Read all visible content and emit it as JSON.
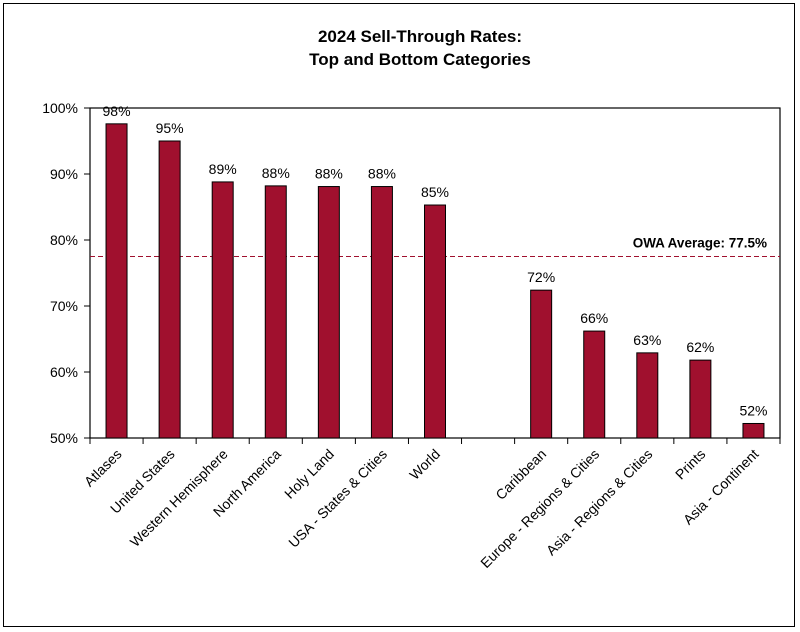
{
  "chart_data": {
    "type": "bar",
    "title_lines": [
      "2024 Sell-Through Rates:",
      "Top and Bottom Categories"
    ],
    "categories": [
      "Atlases",
      "United States",
      "Western Hemisphere",
      "North America",
      "Holy Land",
      "USA - States & Cities",
      "World",
      "",
      "Caribbean",
      "Europe - Regions & Cities",
      "Asia - Regions & Cities",
      "Prints",
      "Asia - Continent"
    ],
    "values": [
      97.6,
      95.0,
      88.8,
      88.2,
      88.1,
      88.1,
      85.3,
      null,
      72.4,
      66.2,
      62.9,
      61.8,
      52.2
    ],
    "data_labels": [
      "98%",
      "95%",
      "89%",
      "88%",
      "88%",
      "88%",
      "85%",
      "",
      "72%",
      "66%",
      "63%",
      "62%",
      "52%"
    ],
    "ylim": [
      50,
      100
    ],
    "yticks": [
      50,
      60,
      70,
      80,
      90,
      100
    ],
    "ytick_labels": [
      "50%",
      "60%",
      "70%",
      "80%",
      "90%",
      "100%"
    ],
    "reference_line": {
      "value": 77.5,
      "label": "OWA Average:  77.5%",
      "style": "dashed"
    },
    "bar_color": "#A0102E",
    "xlabel": "",
    "ylabel": "",
    "grid": false
  }
}
